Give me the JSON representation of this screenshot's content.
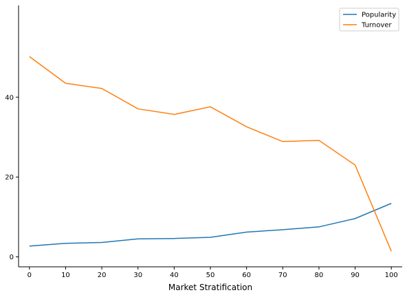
{
  "chart_data": {
    "type": "line",
    "title": "",
    "xlabel": "Market Stratification",
    "ylabel": "",
    "x": [
      0,
      10,
      20,
      30,
      40,
      50,
      60,
      70,
      80,
      90,
      100
    ],
    "xlim": [
      -3,
      103
    ],
    "ylim": [
      -2.5,
      63
    ],
    "xticks": [
      "0",
      "10",
      "20",
      "30",
      "40",
      "50",
      "60",
      "70",
      "80",
      "90",
      "100"
    ],
    "yticks": [
      "0",
      "20",
      "40"
    ],
    "grid": false,
    "legend_position": "top-right",
    "series": [
      {
        "name": "Popularity",
        "color": "#1f77b4",
        "values": [
          2.7,
          3.4,
          3.6,
          4.5,
          4.6,
          4.9,
          6.2,
          6.8,
          7.5,
          9.6,
          13.4
        ]
      },
      {
        "name": "Turnover",
        "color": "#ff7f0e",
        "values": [
          50.2,
          43.5,
          42.2,
          37.1,
          35.7,
          37.6,
          32.6,
          28.9,
          29.2,
          23.0,
          1.4
        ]
      }
    ]
  }
}
